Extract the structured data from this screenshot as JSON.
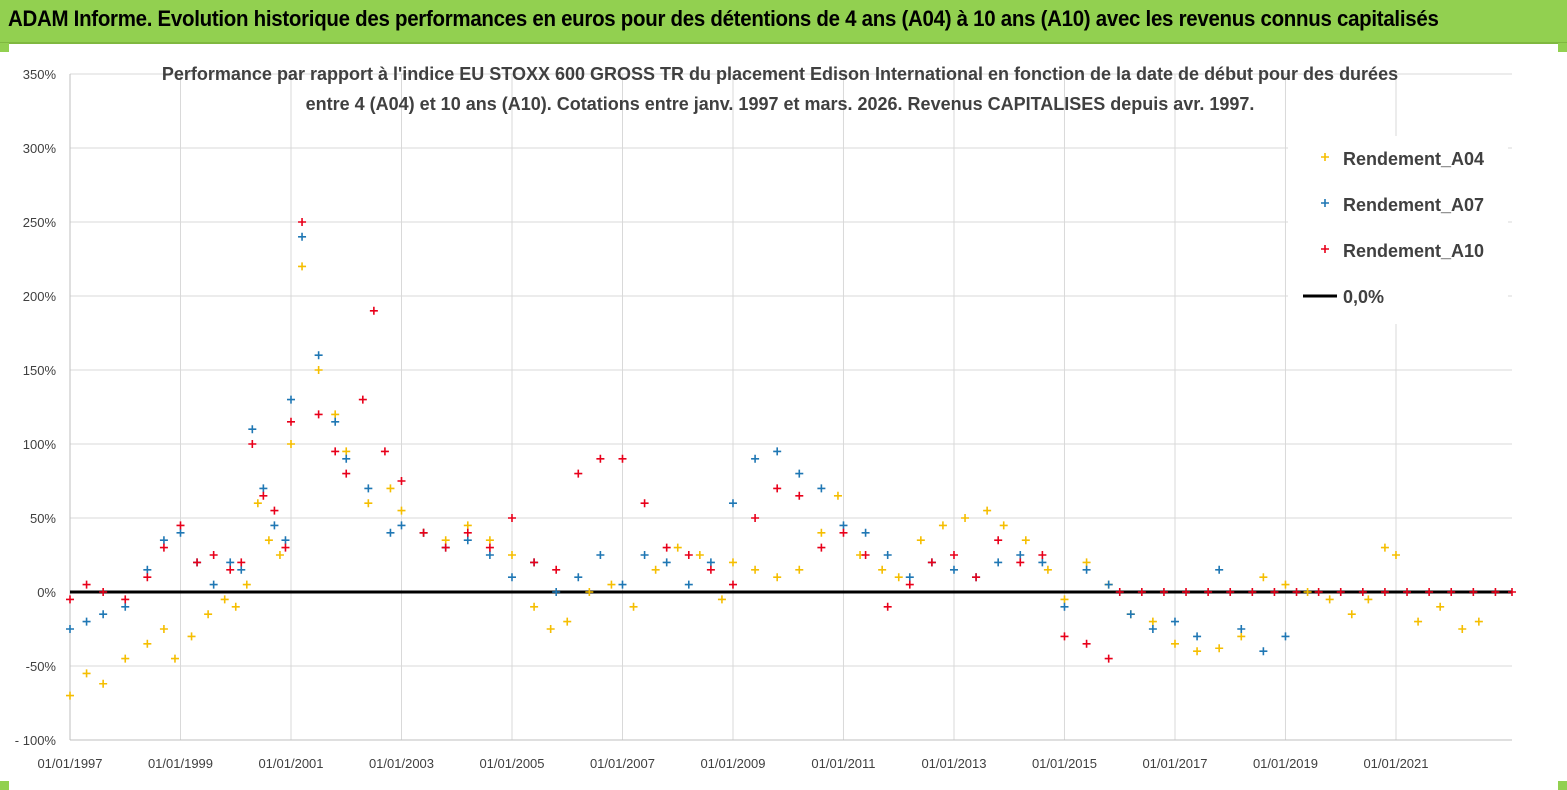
{
  "banner": {
    "title": "ADAM Informe. Evolution historique des performances en euros pour des détentions de 4 ans (A04) à 10 ans (A10) avec les revenus connus capitalisés"
  },
  "chart_data": {
    "type": "scatter",
    "title_line1": "Performance par rapport à l'indice EU STOXX 600 GROSS TR  du placement Edison International en fonction de la date de début pour des durées",
    "title_line2": "entre 4 (A04) et 10 ans (A10). Cotations entre janv. 1997 et mars. 2026. Revenus CAPITALISES depuis avr. 1997.",
    "xlabel": "",
    "ylabel": "",
    "xlim": [
      1997.0,
      2023.1
    ],
    "ylim": [
      -100,
      350
    ],
    "y_ticks": [
      -100,
      -50,
      0,
      50,
      100,
      150,
      200,
      250,
      300,
      350
    ],
    "y_tick_labels": [
      "- 100%",
      "-50%",
      "0%",
      "50%",
      "100%",
      "150%",
      "200%",
      "250%",
      "300%",
      "350%"
    ],
    "x_ticks": [
      1997,
      1999,
      2001,
      2003,
      2005,
      2007,
      2009,
      2011,
      2013,
      2015,
      2017,
      2019,
      2021
    ],
    "x_tick_labels": [
      "01/01/1997",
      "01/01/1999",
      "01/01/2001",
      "01/01/2003",
      "01/01/2005",
      "01/01/2007",
      "01/01/2009",
      "01/01/2011",
      "01/01/2013",
      "01/01/2015",
      "01/01/2017",
      "01/01/2019",
      "01/01/2021"
    ],
    "grid": true,
    "legend_position": "top-right",
    "series": [
      {
        "name": "Rendement_A04",
        "color": "#f5be00",
        "marker": "plus",
        "x": [
          1997.0,
          1997.3,
          1997.6,
          1998.0,
          1998.4,
          1998.7,
          1998.9,
          1999.2,
          1999.5,
          1999.8,
          2000.0,
          2000.2,
          2000.4,
          2000.6,
          2000.8,
          2001.0,
          2001.2,
          2001.5,
          2001.8,
          2002.0,
          2002.4,
          2002.8,
          2003.0,
          2003.4,
          2003.8,
          2004.2,
          2004.6,
          2005.0,
          2005.4,
          2005.7,
          2006.0,
          2006.4,
          2006.8,
          2007.2,
          2007.6,
          2008.0,
          2008.4,
          2008.8,
          2009.0,
          2009.4,
          2009.8,
          2010.2,
          2010.6,
          2010.9,
          2011.3,
          2011.7,
          2012.0,
          2012.4,
          2012.8,
          2013.2,
          2013.6,
          2013.9,
          2014.3,
          2014.7,
          2015.0,
          2015.4,
          2015.8,
          2016.2,
          2016.6,
          2017.0,
          2017.4,
          2017.8,
          2018.2,
          2018.6,
          2019.0,
          2019.4,
          2019.8,
          2020.2,
          2020.5,
          2020.8,
          2021.0,
          2021.4,
          2021.8,
          2022.2,
          2022.5
        ],
        "y": [
          -70,
          -55,
          -62,
          -45,
          -35,
          -25,
          -45,
          -30,
          -15,
          -5,
          -10,
          5,
          60,
          35,
          25,
          100,
          220,
          150,
          120,
          95,
          60,
          70,
          55,
          40,
          35,
          45,
          35,
          25,
          -10,
          -25,
          -20,
          0,
          5,
          -10,
          15,
          30,
          25,
          -5,
          20,
          15,
          10,
          15,
          40,
          65,
          25,
          15,
          10,
          35,
          45,
          50,
          55,
          45,
          35,
          15,
          -5,
          20,
          5,
          -15,
          -20,
          -35,
          -40,
          -38,
          -30,
          10,
          5,
          0,
          -5,
          -15,
          -5,
          30,
          25,
          -20,
          -10,
          -25,
          -20
        ]
      },
      {
        "name": "Rendement_A07",
        "color": "#1f77b4",
        "marker": "plus",
        "x": [
          1997.0,
          1997.3,
          1997.6,
          1998.0,
          1998.4,
          1998.7,
          1999.0,
          1999.3,
          1999.6,
          1999.9,
          2000.1,
          2000.3,
          2000.5,
          2000.7,
          2000.9,
          2001.0,
          2001.2,
          2001.5,
          2001.8,
          2002.0,
          2002.4,
          2002.8,
          2003.0,
          2003.4,
          2003.8,
          2004.2,
          2004.6,
          2005.0,
          2005.4,
          2005.8,
          2006.2,
          2006.6,
          2007.0,
          2007.4,
          2007.8,
          2008.2,
          2008.6,
          2009.0,
          2009.4,
          2009.8,
          2010.2,
          2010.6,
          2011.0,
          2011.4,
          2011.8,
          2012.2,
          2012.6,
          2013.0,
          2013.4,
          2013.8,
          2014.2,
          2014.6,
          2015.0,
          2015.4,
          2015.8,
          2016.2,
          2016.6,
          2017.0,
          2017.4,
          2017.8,
          2018.2,
          2018.6,
          2019.0
        ],
        "y": [
          -25,
          -20,
          -15,
          -10,
          15,
          35,
          40,
          20,
          5,
          20,
          15,
          110,
          70,
          45,
          35,
          130,
          240,
          160,
          115,
          90,
          70,
          40,
          45,
          40,
          30,
          35,
          25,
          10,
          20,
          0,
          10,
          25,
          5,
          25,
          20,
          5,
          20,
          60,
          90,
          95,
          80,
          70,
          45,
          40,
          25,
          10,
          20,
          15,
          10,
          20,
          25,
          20,
          -10,
          15,
          5,
          -15,
          -25,
          -20,
          -30,
          15,
          -25,
          -40,
          -30
        ]
      },
      {
        "name": "Rendement_A10",
        "color": "#e8001a",
        "marker": "plus",
        "x": [
          1997.0,
          1997.3,
          1997.6,
          1998.0,
          1998.4,
          1998.7,
          1999.0,
          1999.3,
          1999.6,
          1999.9,
          2000.1,
          2000.3,
          2000.5,
          2000.7,
          2000.9,
          2001.0,
          2001.2,
          2001.5,
          2001.8,
          2002.0,
          2002.3,
          2002.5,
          2002.7,
          2003.0,
          2003.4,
          2003.8,
          2004.2,
          2004.6,
          2005.0,
          2005.4,
          2005.8,
          2006.2,
          2006.6,
          2007.0,
          2007.4,
          2007.8,
          2008.2,
          2008.6,
          2009.0,
          2009.4,
          2009.8,
          2010.2,
          2010.6,
          2011.0,
          2011.4,
          2011.8,
          2012.2,
          2012.6,
          2013.0,
          2013.4,
          2013.8,
          2014.2,
          2014.6,
          2015.0,
          2015.4,
          2015.8,
          2016.0,
          2016.4,
          2016.8,
          2017.2,
          2017.6,
          2018.0,
          2018.4,
          2018.8,
          2019.2,
          2019.6,
          2020.0,
          2020.4,
          2020.8,
          2021.2,
          2021.6,
          2022.0,
          2022.4,
          2022.8,
          2023.1
        ],
        "y": [
          -5,
          5,
          0,
          -5,
          10,
          30,
          45,
          20,
          25,
          15,
          20,
          100,
          65,
          55,
          30,
          115,
          250,
          120,
          95,
          80,
          130,
          190,
          95,
          75,
          40,
          30,
          40,
          30,
          50,
          20,
          15,
          80,
          90,
          90,
          60,
          30,
          25,
          15,
          5,
          50,
          70,
          65,
          30,
          40,
          25,
          -10,
          5,
          20,
          25,
          10,
          35,
          20,
          25,
          -30,
          -35,
          -45,
          0,
          0,
          0,
          0,
          0,
          0,
          0,
          0,
          0,
          0,
          0,
          0,
          0,
          0,
          0,
          0,
          0,
          0,
          0
        ]
      },
      {
        "name": "0,0%",
        "color": "#000000",
        "marker": "line",
        "x": [
          1997.0,
          2023.1
        ],
        "y": [
          0,
          0
        ]
      }
    ]
  }
}
